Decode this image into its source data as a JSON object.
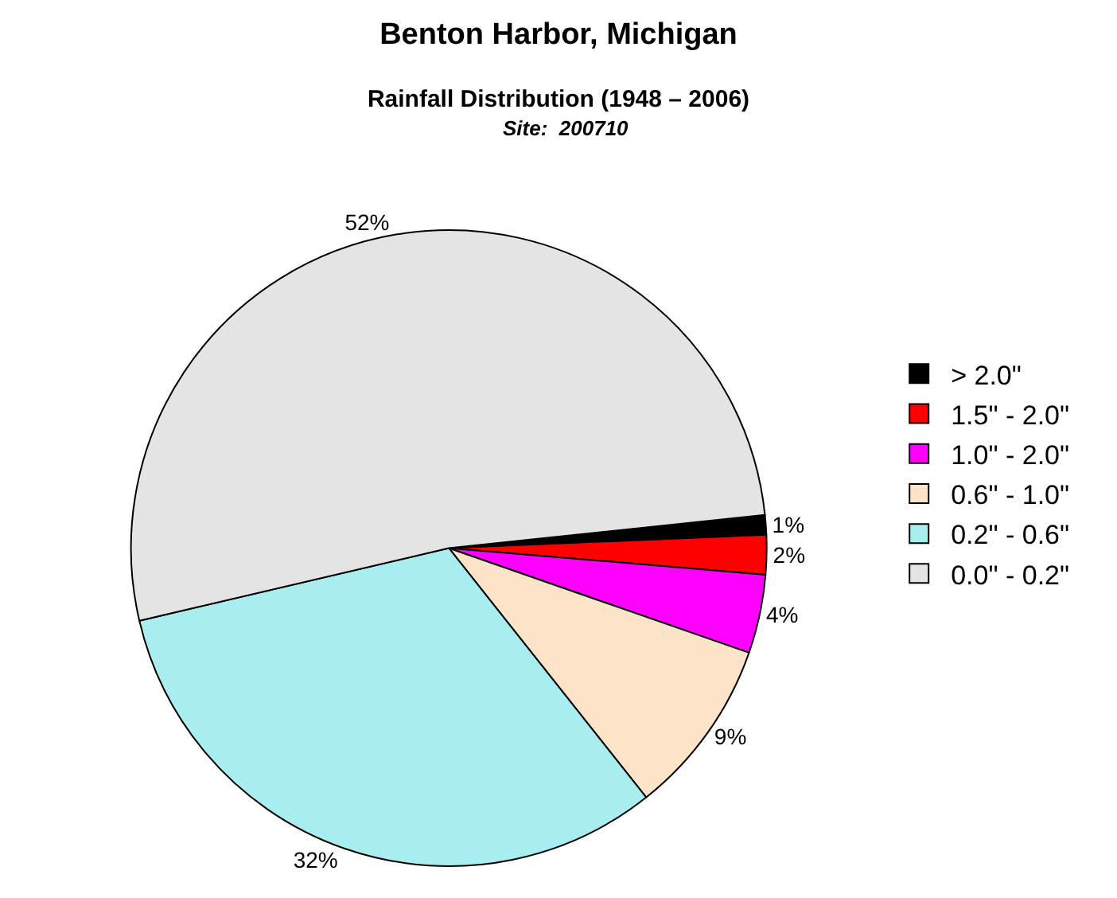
{
  "chart_data": {
    "type": "pie",
    "title": "Benton Harbor, Michigan",
    "subtitle": "Rainfall Distribution (1948 – 2006)",
    "annotations": [
      "Site:  200710"
    ],
    "categories": [
      "> 2.0\"",
      "1.5\" - 2.0\"",
      "1.0\" - 2.0\"",
      "0.6\" - 1.0\"",
      "0.2\" - 0.6\"",
      "0.0\" - 0.2\""
    ],
    "values": [
      1,
      2,
      4,
      9,
      32,
      52
    ],
    "colors": [
      "#000000",
      "#ff0000",
      "#ff00ff",
      "#fde4c8",
      "#a8eef0",
      "#e4e4e4"
    ],
    "value_labels": [
      "1%",
      "2%",
      "4%",
      "9%",
      "32%",
      "52%"
    ],
    "legend": "right"
  }
}
